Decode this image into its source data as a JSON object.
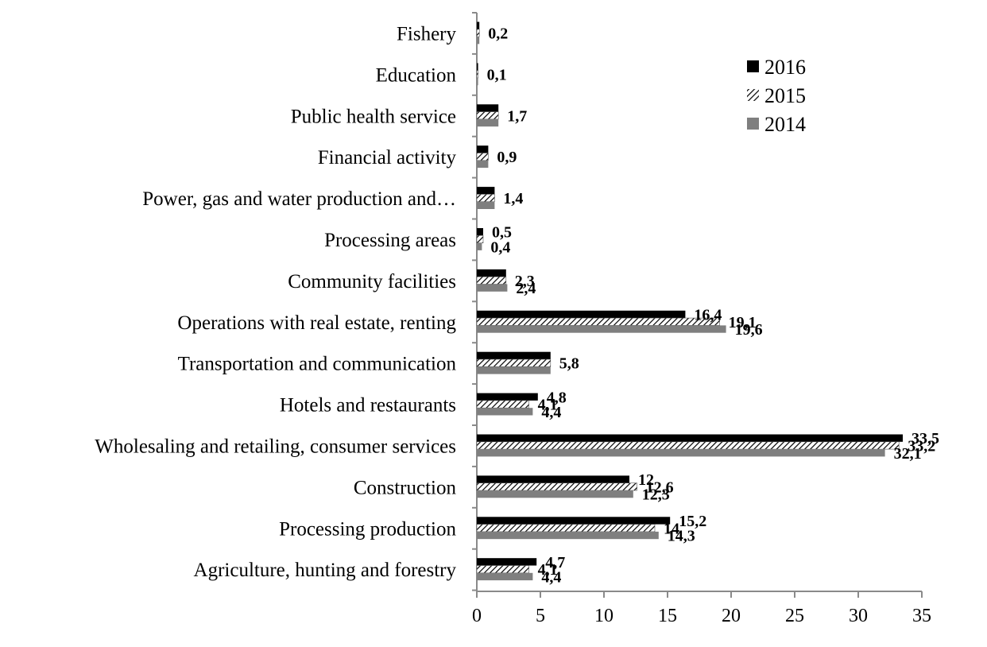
{
  "chart_data": {
    "type": "bar",
    "orientation": "horizontal",
    "categories": [
      "Agriculture, hunting and forestry",
      "Processing production",
      "Construction",
      "Wholesaling and retailing, consumer services",
      "Hotels and restaurants",
      "Transportation and communication",
      "Operations with real estate, renting",
      "Community facilities ",
      "Processing areas",
      "Power, gas and water production and…",
      "Financial activity",
      "Public health service",
      "Education",
      "Fishery"
    ],
    "series": [
      {
        "name": "2016",
        "color": "#000000",
        "pattern": "solid",
        "values": [
          4.7,
          15.2,
          12,
          33.5,
          4.8,
          5.8,
          16.4,
          2.3,
          0.5,
          1.4,
          0.9,
          1.7,
          0.1,
          0.2
        ]
      },
      {
        "name": "2015",
        "color": "#000000",
        "pattern": "hatch",
        "values": [
          4.1,
          14,
          12.6,
          33.2,
          4.1,
          5.8,
          19.1,
          2.3,
          0.5,
          1.4,
          0.9,
          1.7,
          0.1,
          0.2
        ]
      },
      {
        "name": "2014",
        "color": "#7f7f7f",
        "pattern": "solid",
        "values": [
          4.4,
          14.3,
          12.3,
          32.1,
          4.4,
          5.8,
          19.6,
          2.4,
          0.4,
          1.4,
          0.9,
          1.7,
          0.1,
          0.2
        ]
      }
    ],
    "data_labels": [
      [
        "4,7",
        "4,1",
        "4,4"
      ],
      [
        "15,2",
        "14",
        "14,3"
      ],
      [
        "12",
        "12,6",
        "12,3"
      ],
      [
        "33,5",
        "33,2",
        "32,1"
      ],
      [
        "4,8",
        "4,1",
        "4,4"
      ],
      [
        "",
        "5,8",
        ""
      ],
      [
        "16,4",
        "19,1",
        "19,6"
      ],
      [
        "",
        "2,3",
        "2,4"
      ],
      [
        "0,5",
        "",
        "0,4"
      ],
      [
        "",
        "1,4",
        ""
      ],
      [
        "",
        "0,9",
        ""
      ],
      [
        "",
        "1,7",
        ""
      ],
      [
        "",
        "0,1",
        ""
      ],
      [
        "",
        "0,2",
        ""
      ]
    ],
    "x_ticks": [
      "0",
      "5",
      "10",
      "15",
      "20",
      "25",
      "30",
      "35"
    ],
    "xlim": [
      0,
      35
    ],
    "grid": false,
    "legend_position": "top-right",
    "title": "",
    "xlabel": "",
    "ylabel": ""
  }
}
